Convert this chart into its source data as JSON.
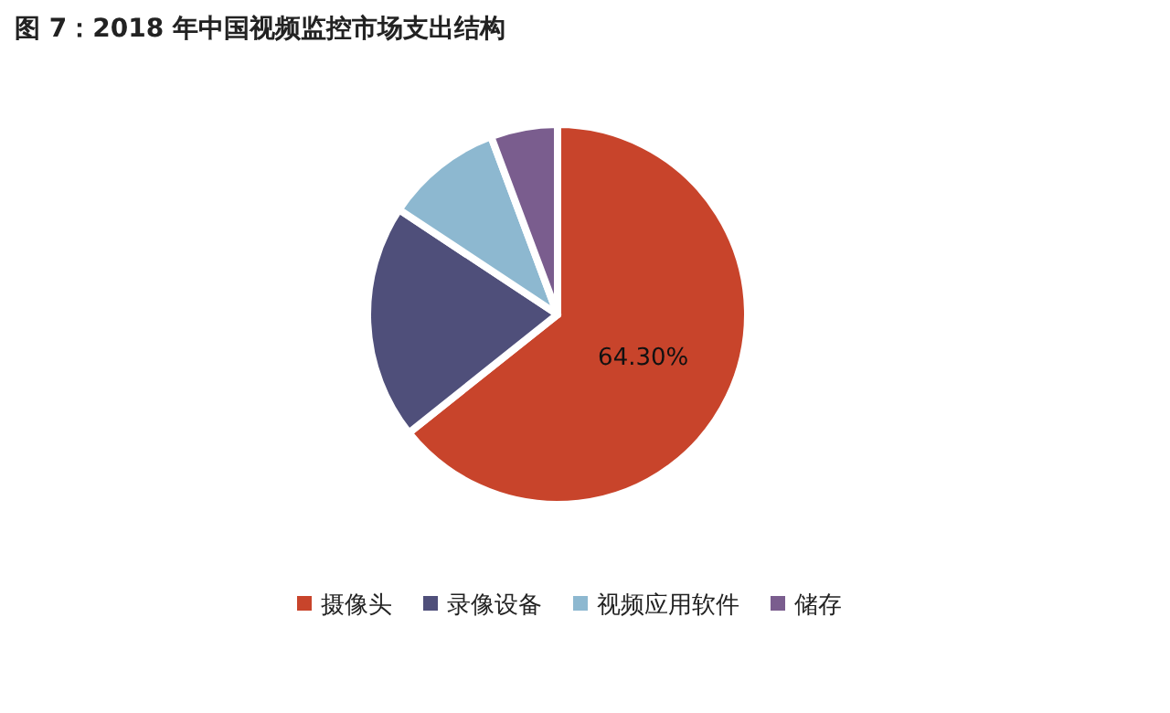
{
  "chart_data": {
    "type": "pie",
    "title": "图 7：2018 年中国视频监控市场支出结构",
    "categories": [
      "摄像头",
      "录像设备",
      "视频应用软件",
      "储存"
    ],
    "values": [
      64.3,
      20,
      10,
      5.7
    ],
    "value_labels": [
      "64.30%",
      null,
      null,
      null
    ],
    "colors": [
      "#c8442b",
      "#4f4f7a",
      "#8db8d0",
      "#7a5d8e"
    ],
    "legend": "bottom"
  }
}
